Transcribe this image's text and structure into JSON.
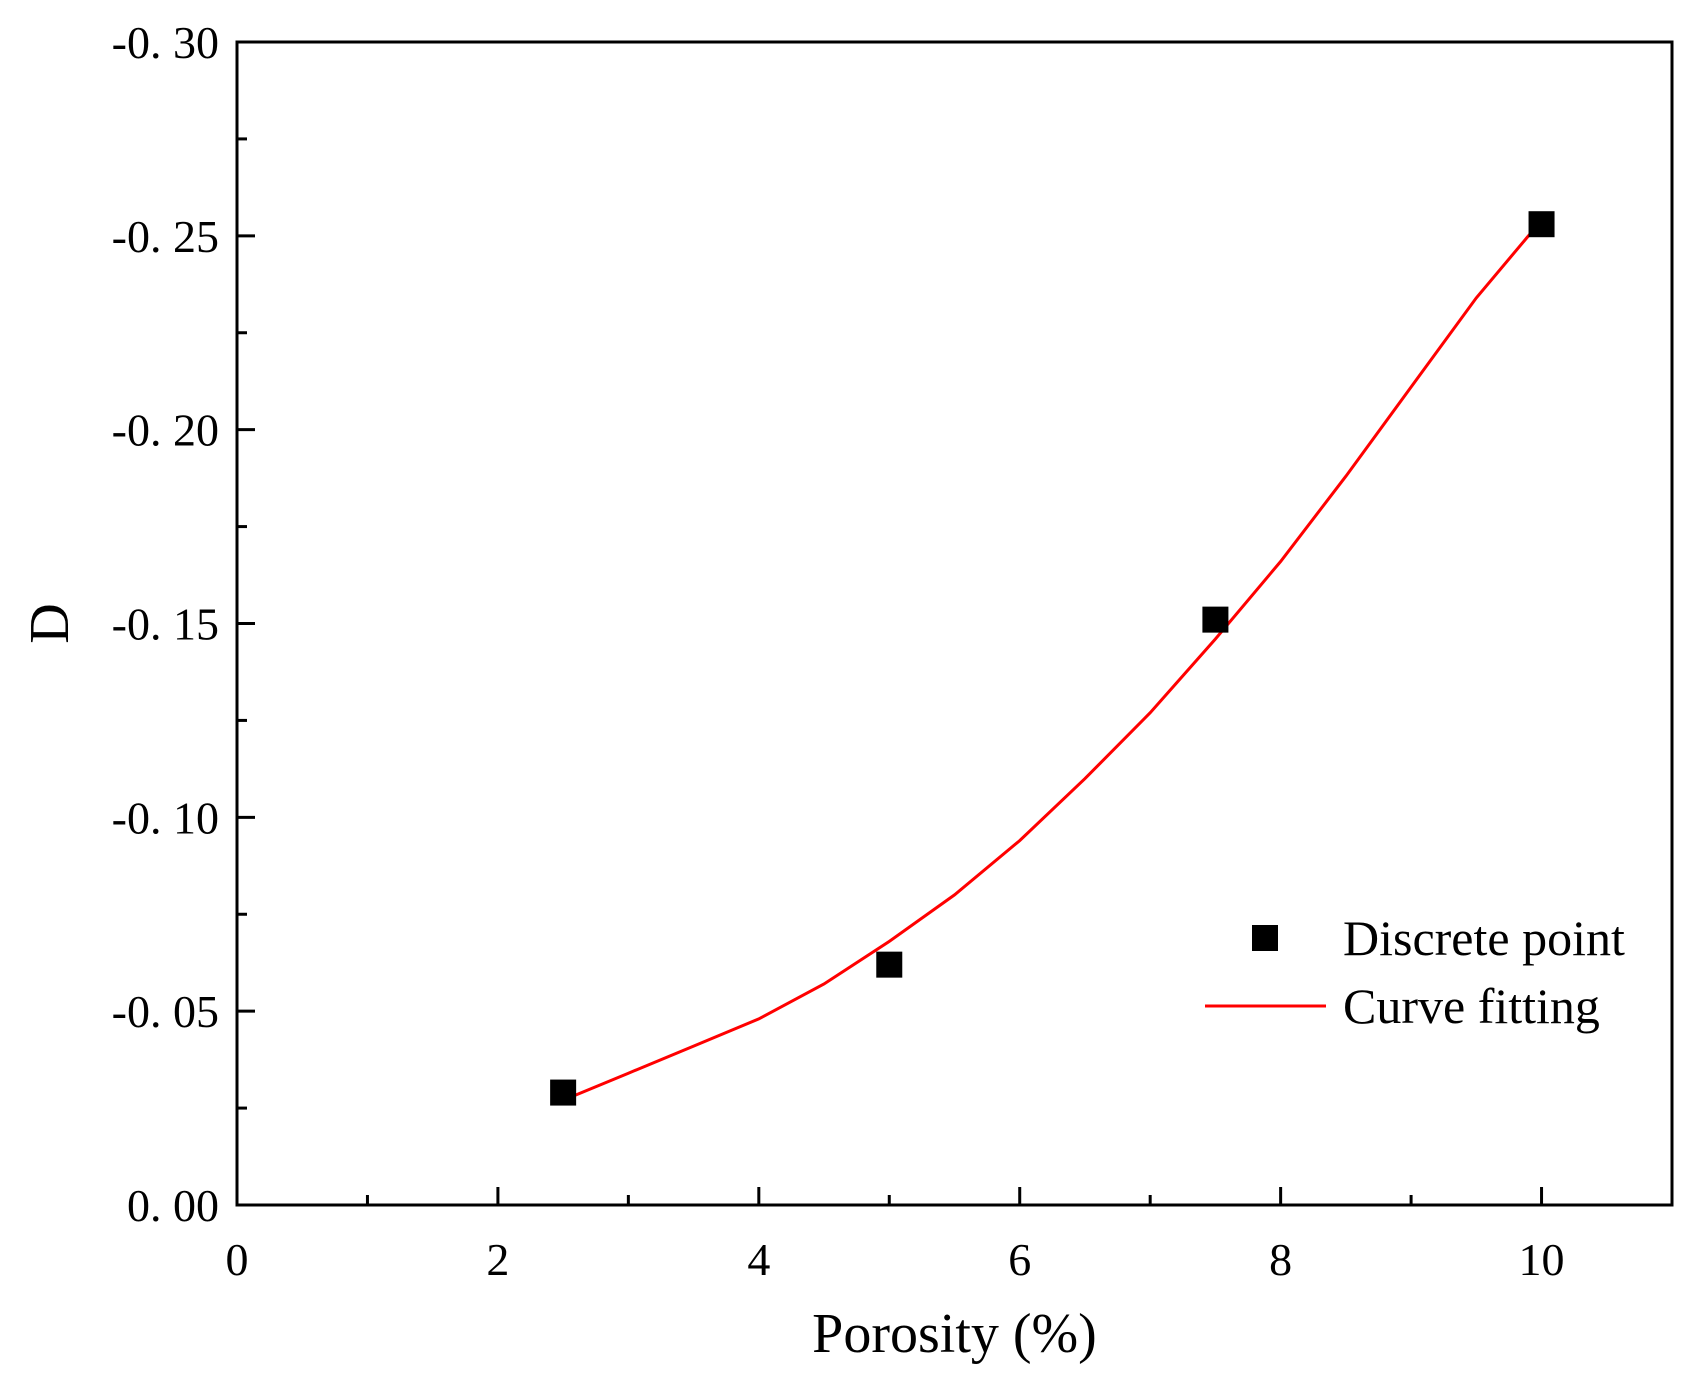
{
  "chart_data": {
    "type": "scatter",
    "title": "",
    "xlabel": "Porosity (%)",
    "ylabel": "D",
    "xlim": [
      0,
      11
    ],
    "ylim": [
      0,
      -0.3
    ],
    "x_ticks": [
      0,
      2,
      4,
      6,
      8,
      10
    ],
    "x_tick_labels": [
      "0",
      "2",
      "4",
      "6",
      "8",
      "10"
    ],
    "y_ticks": [
      0,
      -0.05,
      -0.1,
      -0.15,
      -0.2,
      -0.25,
      -0.3
    ],
    "y_tick_labels": [
      "0. 00",
      "-0. 05",
      "-0. 10",
      "-0. 15",
      "-0. 20",
      "-0. 25",
      "-0. 30"
    ],
    "grid": false,
    "legend_position": "lower-right",
    "series": [
      {
        "name": "Discrete point",
        "kind": "scatter",
        "marker": "square",
        "color": "#000000",
        "x": [
          2.5,
          5.0,
          7.5,
          10.0
        ],
        "y": [
          -0.029,
          -0.062,
          -0.151,
          -0.253
        ]
      },
      {
        "name": "Curve fitting",
        "kind": "line",
        "color": "#ff0000",
        "x": [
          2.5,
          3.0,
          3.5,
          4.0,
          4.5,
          5.0,
          5.5,
          6.0,
          6.5,
          7.0,
          7.5,
          8.0,
          8.5,
          9.0,
          9.5,
          10.0
        ],
        "y": [
          -0.027,
          -0.034,
          -0.041,
          -0.048,
          -0.057,
          -0.068,
          -0.08,
          -0.094,
          -0.11,
          -0.127,
          -0.146,
          -0.166,
          -0.188,
          -0.211,
          -0.234,
          -0.254
        ]
      }
    ],
    "legend": [
      {
        "label": "Discrete point",
        "symbol": "square"
      },
      {
        "label": "Curve fitting",
        "symbol": "line"
      }
    ]
  }
}
